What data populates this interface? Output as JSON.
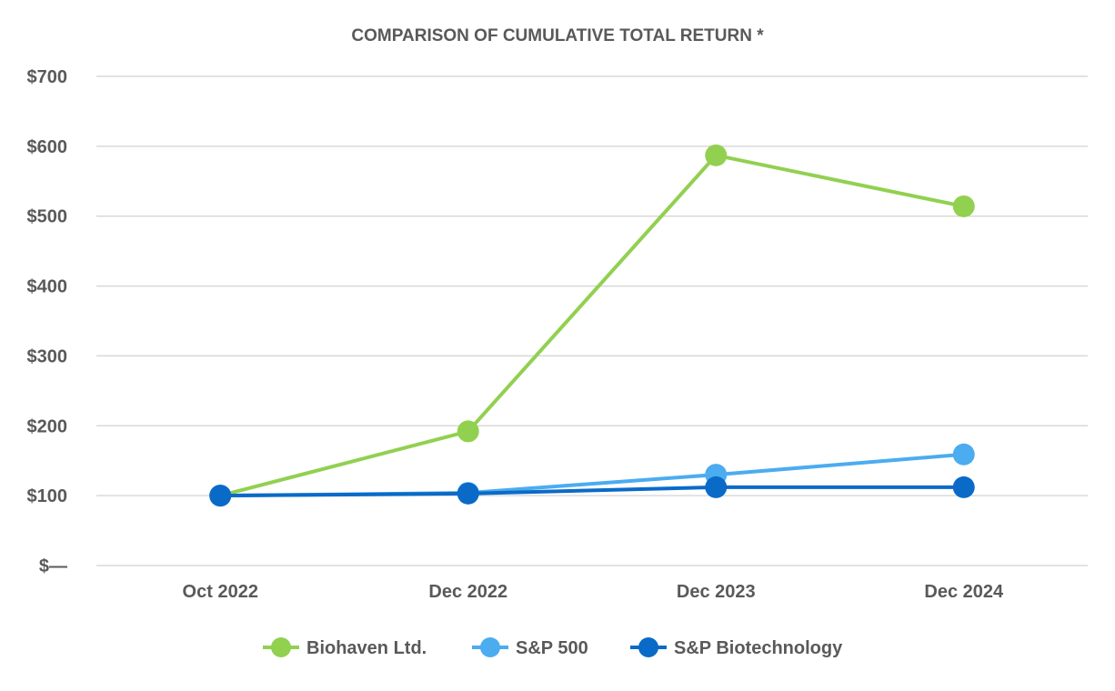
{
  "chart_data": {
    "type": "line",
    "title": "COMPARISON OF CUMULATIVE TOTAL RETURN *",
    "xlabel": "",
    "ylabel": "",
    "categories": [
      "Oct 2022",
      "Dec 2022",
      "Dec 2023",
      "Dec 2024"
    ],
    "ylim": [
      0,
      700
    ],
    "yticks": [
      0,
      100,
      200,
      300,
      400,
      500,
      600,
      700
    ],
    "ytick_labels": [
      "$—",
      "$100",
      "$200",
      "$300",
      "$400",
      "$500",
      "$600",
      "$700"
    ],
    "grid": true,
    "legend_position": "bottom",
    "series": [
      {
        "name": "Biohaven Ltd.",
        "color": "#92d050",
        "values": [
          100,
          192,
          587,
          514
        ]
      },
      {
        "name": "S&P 500",
        "color": "#4bacf0",
        "values": [
          100,
          104,
          130,
          159
        ]
      },
      {
        "name": "S&P Biotechnology",
        "color": "#0a6ac8",
        "values": [
          100,
          103,
          112,
          112
        ]
      }
    ]
  }
}
